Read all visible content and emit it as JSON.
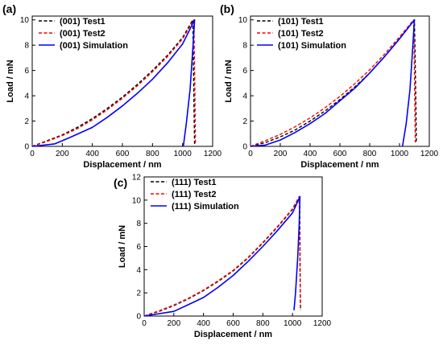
{
  "chart_data": [
    {
      "type": "line",
      "panel_label": "(a)",
      "xlabel": "Displacement / nm",
      "ylabel": "Load / mN",
      "xlim": [
        0,
        1200
      ],
      "ylim": [
        0,
        10.3
      ],
      "xticks": [
        0,
        200,
        400,
        600,
        800,
        1000,
        1200
      ],
      "yticks": [
        0,
        2,
        4,
        6,
        8,
        10
      ],
      "legend_position": "top-left",
      "series": [
        {
          "name": "(001) Test1",
          "color": "#000000",
          "style": "dashed",
          "x": [
            0,
            100,
            200,
            300,
            400,
            500,
            600,
            700,
            800,
            900,
            1000,
            1068,
            1072,
            1076,
            1080
          ],
          "y": [
            0,
            0.45,
            0.9,
            1.5,
            2.2,
            3.0,
            3.9,
            4.9,
            6.0,
            7.2,
            8.6,
            10.0,
            7.0,
            3.0,
            0.2
          ]
        },
        {
          "name": "(001) Test2",
          "color": "#ff0000",
          "style": "dashed",
          "x": [
            0,
            100,
            200,
            300,
            400,
            500,
            600,
            700,
            800,
            900,
            1000,
            1075,
            1079,
            1083,
            1086
          ],
          "y": [
            0,
            0.4,
            0.85,
            1.4,
            2.1,
            2.9,
            3.8,
            4.8,
            5.9,
            7.1,
            8.5,
            10.0,
            7.0,
            3.0,
            0.2
          ]
        },
        {
          "name": "(001) Simulation",
          "color": "#0000ff",
          "style": "solid",
          "x": [
            0,
            150,
            250,
            400,
            500,
            600,
            700,
            800,
            900,
            1000,
            1080,
            1070,
            1050,
            1025,
            1005
          ],
          "y": [
            0,
            0.2,
            0.7,
            1.5,
            2.3,
            3.2,
            4.2,
            5.3,
            6.6,
            8.1,
            10.0,
            8.0,
            4.5,
            1.8,
            0
          ]
        }
      ]
    },
    {
      "type": "line",
      "panel_label": "(b)",
      "xlabel": "Displacement / nm",
      "ylabel": "Load / mN",
      "xlim": [
        0,
        1200
      ],
      "ylim": [
        0,
        10.3
      ],
      "xticks": [
        0,
        200,
        400,
        600,
        800,
        1000,
        1200
      ],
      "yticks": [
        0,
        2,
        4,
        6,
        8,
        10
      ],
      "legend_position": "top-left",
      "series": [
        {
          "name": "(101) Test1",
          "color": "#000000",
          "style": "dashed",
          "x": [
            0,
            100,
            200,
            300,
            400,
            500,
            600,
            700,
            800,
            900,
            1000,
            1100,
            1105,
            1110,
            1113
          ],
          "y": [
            0,
            0.3,
            0.75,
            1.3,
            2.0,
            2.8,
            3.7,
            4.7,
            5.8,
            7.1,
            8.5,
            10.0,
            7.0,
            3.0,
            0.3
          ]
        },
        {
          "name": "(101) Test2",
          "color": "#ff0000",
          "style": "dashed",
          "x": [
            0,
            100,
            200,
            300,
            400,
            500,
            600,
            700,
            800,
            900,
            1000,
            1095,
            1099,
            1103,
            1106
          ],
          "y": [
            0,
            0.45,
            0.95,
            1.55,
            2.25,
            3.05,
            3.95,
            4.95,
            6.05,
            7.3,
            8.65,
            10.0,
            7.0,
            3.0,
            0.3
          ]
        },
        {
          "name": "(101) Simulation",
          "color": "#0000ff",
          "style": "solid",
          "x": [
            0,
            100,
            200,
            300,
            400,
            500,
            600,
            700,
            800,
            900,
            1000,
            1100,
            1090,
            1070,
            1045,
            1020
          ],
          "y": [
            0,
            0.1,
            0.5,
            1.1,
            1.8,
            2.6,
            3.6,
            4.6,
            5.8,
            7.1,
            8.5,
            10.0,
            8.0,
            4.5,
            1.8,
            0
          ]
        }
      ]
    },
    {
      "type": "line",
      "panel_label": "(c)",
      "xlabel": "Displacement / nm",
      "ylabel": "Load / mN",
      "xlim": [
        0,
        1200
      ],
      "ylim": [
        0,
        12
      ],
      "xticks": [
        0,
        200,
        400,
        600,
        800,
        1000,
        1200
      ],
      "yticks": [
        0,
        2,
        4,
        6,
        8,
        10,
        12
      ],
      "legend_position": "top-left",
      "series": [
        {
          "name": "(111) Test1",
          "color": "#000000",
          "style": "dashed",
          "x": [
            0,
            100,
            200,
            300,
            400,
            500,
            600,
            700,
            800,
            900,
            1000,
            1048,
            1050,
            1052,
            1054
          ],
          "y": [
            0,
            0.4,
            0.9,
            1.5,
            2.2,
            3.0,
            3.9,
            5.0,
            6.3,
            7.7,
            9.2,
            10.3,
            7.0,
            3.0,
            0.5
          ]
        },
        {
          "name": "(111) Test2",
          "color": "#ff0000",
          "style": "dashed",
          "x": [
            0,
            100,
            200,
            300,
            400,
            500,
            600,
            700,
            800,
            900,
            1000,
            1045,
            1048,
            1051,
            1054
          ],
          "y": [
            0,
            0.45,
            0.95,
            1.55,
            2.25,
            3.05,
            3.95,
            5.05,
            6.35,
            7.75,
            9.25,
            10.3,
            7.0,
            3.0,
            0.5
          ]
        },
        {
          "name": "(111) Simulation",
          "color": "#0000ff",
          "style": "solid",
          "x": [
            0,
            200,
            300,
            400,
            500,
            600,
            700,
            800,
            900,
            1000,
            1050,
            1045,
            1035,
            1020,
            1010
          ],
          "y": [
            0,
            0.4,
            1.0,
            1.6,
            2.5,
            3.5,
            4.7,
            6.0,
            7.4,
            8.9,
            10.3,
            8.0,
            5.0,
            2.0,
            0.5
          ]
        }
      ]
    }
  ]
}
